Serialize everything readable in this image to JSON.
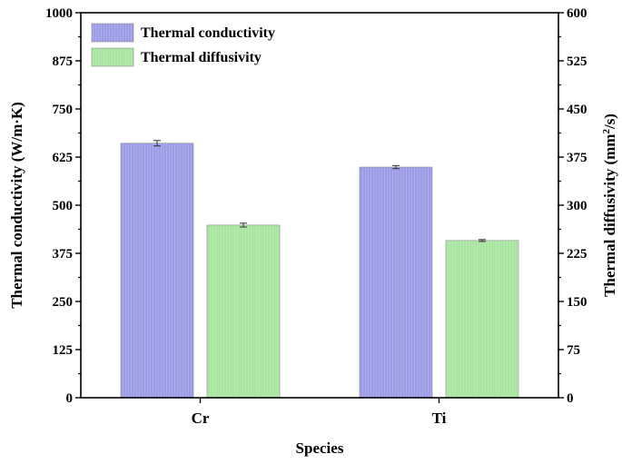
{
  "chart_data": {
    "type": "bar",
    "categories": [
      "Cr",
      "Ti"
    ],
    "xlabel": "Species",
    "series": [
      {
        "name": "Thermal conductivity",
        "axis": "left",
        "color": "#9b9be6",
        "values": [
          661,
          599
        ],
        "errors": [
          7,
          4
        ]
      },
      {
        "name": "Thermal diffusivity",
        "axis": "right",
        "color": "#a8e6a0",
        "values": [
          269,
          245
        ],
        "errors": [
          3,
          1.5
        ]
      }
    ],
    "left_axis": {
      "label": "Thermal conductivity (W/m·K)",
      "lim": [
        0,
        1000
      ],
      "ticks": [
        "0",
        "125",
        "250",
        "375",
        "500",
        "625",
        "750",
        "875",
        "1000"
      ]
    },
    "right_axis": {
      "label_main": "Thermal diffusivity (mm",
      "label_sup": "2",
      "label_end": "/s)",
      "lim": [
        0,
        600
      ],
      "ticks": [
        "0",
        "75",
        "150",
        "225",
        "300",
        "375",
        "450",
        "525",
        "600"
      ]
    },
    "legend_position": "top-left",
    "grid": false
  }
}
